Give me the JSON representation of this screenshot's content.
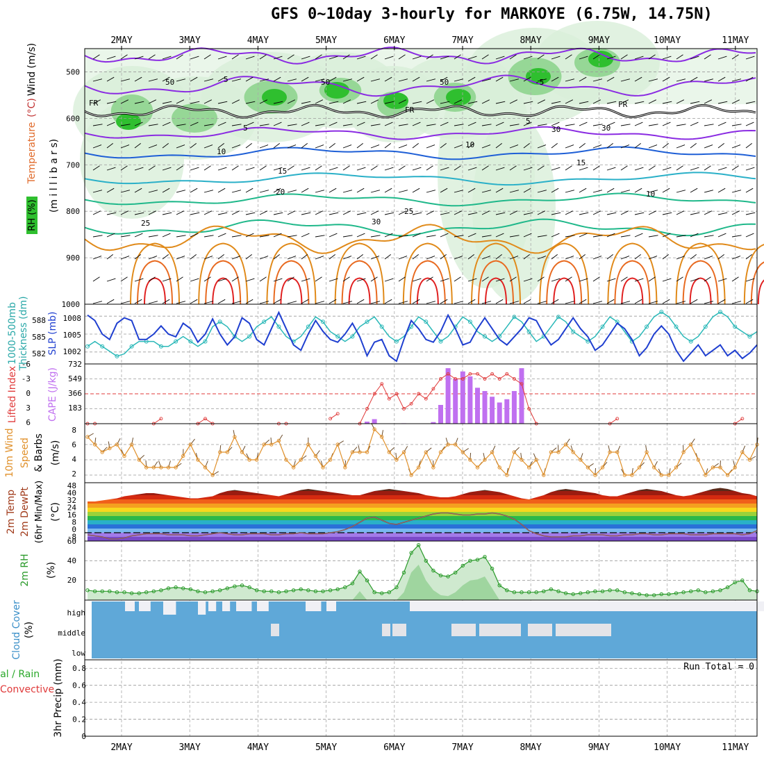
{
  "title": "GFS 0~10day 3-hourly for MARKOYE (6.75W, 14.75N)",
  "colors": {
    "rh_green": "#2fbf2f",
    "rh_light": "#d9efd9",
    "temp_purple": "#8a2be2",
    "temp_blue": "#1e5fd6",
    "temp_cyan": "#2ab0c8",
    "temp_teal": "#1fb88a",
    "temp_orange": "#e08a1a",
    "temp_red": "#e02020",
    "slp": "#1f3fd0",
    "thick": "#2ab8b8",
    "lifted": "#e03a3a",
    "cape": "#c070f0",
    "wind": "#e0902a",
    "rh2m": "#2a9a2a",
    "cloud": "#5fa8d8",
    "cloud_clear": "#f0f0f5"
  },
  "dates_top": [
    "2MAY",
    "3MAY",
    "4MAY",
    "5MAY",
    "6MAY",
    "7MAY",
    "8MAY",
    "9MAY",
    "10MAY",
    "11MAY"
  ],
  "dates_bottom": [
    "2MAY",
    "3MAY",
    "4MAY",
    "5MAY",
    "6MAY",
    "7MAY",
    "8MAY",
    "9MAY",
    "10MAY",
    "11MAY"
  ],
  "panel_labels": {
    "p1_rh": "RH (%)",
    "p1_temp": "Temperature",
    "p1_tempunit": "(°C)",
    "p1_wind": "Wind (m/s)",
    "p1_mb": "(m i l l i b a r s)",
    "p2_thick": "1000-500mb",
    "p2_thick2": "Thickness (dm)",
    "p2_slp": "SLP (mb)",
    "p3_li": "Lifted Index",
    "p3_cape": "CAPE (J/kg)",
    "p4_a": "10m Wind",
    "p4_b": "Speed",
    "p4_c": "& Barbs",
    "p4_unit": "(m/s)",
    "p5_a": "2m Temp",
    "p5_b": "2m DewPt",
    "p5_c": "(6hr Min/Max)",
    "p5_unit": "(°C)",
    "p6_a": "2m RH",
    "p6_unit": "(%)",
    "p7_a": "Cloud Cover",
    "p7_unit": "(%)",
    "p8_a": "Total / Rain",
    "p8_b": "Convective",
    "p8_c": "3hr Precip (mm)",
    "run_total": "Run Total = 0"
  },
  "pressure_ticks": [
    "500",
    "600",
    "700",
    "800",
    "900",
    "1000"
  ],
  "contour_labels": [
    "FR",
    "FR",
    "FR",
    "5",
    "5",
    "5",
    "-5",
    "10",
    "10",
    "15",
    "15",
    "20",
    "25",
    "25",
    "30",
    "50",
    "50",
    "50",
    "30",
    "30",
    "10"
  ],
  "slp_ticks": [
    "1008",
    "1005",
    "1002"
  ],
  "thick_ticks": [
    "588",
    "585",
    "582"
  ],
  "li_ticks": [
    "-6",
    "-3",
    "0",
    "3",
    "6"
  ],
  "cape_ticks": [
    "732",
    "549",
    "366",
    "183"
  ],
  "wind_ticks": [
    "8",
    "6",
    "4",
    "2"
  ],
  "temp_ticks": [
    "48",
    "40",
    "32",
    "24",
    "16",
    "8",
    "0",
    "-8"
  ],
  "rh_ticks": [
    "60",
    "40",
    "20"
  ],
  "cloud_ticks": [
    "high",
    "middle",
    "low"
  ],
  "precip_ticks": [
    "0.8",
    "0.6",
    "0.4",
    "0.2",
    "0"
  ],
  "chart_data": {
    "type": "meteogram",
    "title": "GFS 0~10day 3-hourly for MARKOYE (6.75W, 14.75N)",
    "x_unit": "3-hourly steps",
    "x_start_day": 1.6,
    "x_end_day": 11.3,
    "slp_mb": [
      1008.5,
      1007.5,
      1005,
      1004,
      1007,
      1008,
      1007.5,
      1004,
      1004,
      1005,
      1006.5,
      1005,
      1004.5,
      1007,
      1006,
      1003.5,
      1005,
      1007.8,
      1005,
      1003,
      1004.5,
      1008,
      1007,
      1004,
      1003,
      1006,
      1009,
      1006,
      1003,
      1002,
      1005,
      1007.5,
      1005.5,
      1004,
      1003.5,
      1005,
      1007,
      1004.5,
      1001,
      1003.5,
      1004,
      1001,
      1000,
      1004,
      1007.5,
      1006,
      1004,
      1003.5,
      1005.5,
      1008.5,
      1006,
      1003,
      1003.5,
      1006,
      1008,
      1006,
      1004,
      1003,
      1004.5,
      1006,
      1008,
      1007.5,
      1005,
      1003,
      1004,
      1006,
      1008,
      1006,
      1004.5,
      1002,
      1003,
      1005,
      1007,
      1006,
      1004,
      1001,
      1002.5,
      1005,
      1006.5,
      1005,
      1002,
      1000,
      1001.5,
      1003,
      1001,
      1002,
      1003,
      1001,
      1002,
      1000.5,
      1001.5,
      1003
    ],
    "thickness_dm": [
      582,
      583,
      582,
      581,
      580,
      580.5,
      582,
      583,
      583,
      583,
      582,
      582,
      583,
      584,
      583,
      582,
      583,
      586,
      587,
      586,
      584,
      583,
      584,
      586,
      587,
      588,
      586,
      584,
      583,
      584,
      586,
      588,
      587,
      585,
      584,
      583,
      584,
      586,
      587,
      588,
      586,
      584,
      583,
      584,
      586,
      588,
      587,
      585,
      583,
      584,
      586,
      588,
      587,
      585,
      584,
      583,
      584,
      586,
      588,
      587,
      585,
      583,
      584,
      586,
      588,
      587,
      585,
      584,
      583,
      584,
      586,
      588,
      587,
      585,
      583,
      584,
      586,
      588,
      589,
      588,
      586,
      584,
      583,
      584,
      586,
      588,
      589,
      588,
      586,
      585,
      584,
      585
    ],
    "lifted_index": [
      6,
      6,
      null,
      null,
      null,
      null,
      null,
      null,
      null,
      6,
      5,
      null,
      null,
      null,
      null,
      6,
      5,
      6,
      null,
      null,
      null,
      null,
      null,
      null,
      null,
      null,
      6,
      6,
      null,
      null,
      null,
      null,
      null,
      5,
      4,
      null,
      null,
      6,
      3,
      0,
      -2,
      1,
      0,
      3,
      2,
      0,
      1,
      -1,
      -3,
      -4,
      -3,
      -3,
      -4,
      -4,
      -3,
      -4,
      -3,
      -4,
      -3,
      -2,
      3,
      6,
      null,
      null,
      null,
      null,
      null,
      null,
      null,
      null,
      null,
      6,
      5,
      null,
      null,
      null,
      null,
      null,
      null,
      null,
      null,
      null,
      null,
      null,
      null,
      null,
      null,
      null,
      6,
      5,
      null,
      null
    ],
    "cape_jkg": [
      0,
      0,
      0,
      0,
      0,
      0,
      0,
      0,
      0,
      0,
      0,
      0,
      0,
      0,
      0,
      0,
      0,
      0,
      0,
      0,
      0,
      0,
      0,
      0,
      0,
      0,
      0,
      0,
      0,
      0,
      0,
      0,
      0,
      0,
      0,
      0,
      0,
      0,
      25,
      55,
      0,
      0,
      0,
      5,
      0,
      0,
      0,
      20,
      230,
      680,
      550,
      640,
      580,
      440,
      400,
      330,
      260,
      300,
      400,
      680,
      0,
      0,
      0,
      0,
      0,
      0,
      0,
      0,
      0,
      0,
      0,
      0,
      0,
      0,
      0,
      0,
      0,
      0,
      0,
      0,
      0,
      0,
      0,
      0,
      0,
      0,
      0,
      0,
      0,
      0,
      0,
      0
    ],
    "wind_speed_ms": [
      7,
      6,
      5,
      5.5,
      6,
      4.5,
      6,
      4,
      3,
      3,
      3,
      3,
      3,
      4.5,
      6,
      4,
      3,
      2,
      5,
      5,
      7,
      5,
      4,
      4,
      6,
      6,
      6.5,
      4,
      3,
      4,
      6,
      4.5,
      3,
      4,
      6,
      3,
      5,
      5,
      5,
      8,
      7,
      5,
      4,
      5,
      2,
      3,
      5,
      3,
      5,
      6,
      6,
      5,
      4,
      3,
      4,
      5,
      3,
      2,
      5,
      4,
      3,
      4,
      2,
      5,
      5,
      6,
      5,
      4,
      3,
      2,
      3,
      5,
      5,
      2,
      2,
      3,
      5,
      3,
      2,
      2,
      3,
      5,
      6,
      4,
      2,
      3,
      3,
      2,
      3,
      5,
      4,
      6
    ],
    "temp_2m_c": [
      30,
      30,
      31,
      32,
      33,
      35,
      36,
      37,
      38,
      38,
      37,
      36,
      35,
      34,
      33,
      33,
      34,
      35,
      38,
      40,
      41,
      40,
      39,
      38,
      37,
      36,
      35,
      37,
      39,
      41,
      42,
      41,
      40,
      39,
      38,
      37,
      36,
      36,
      38,
      40,
      41,
      42,
      41,
      40,
      39,
      38,
      36,
      35,
      34,
      34,
      35,
      37,
      39,
      40,
      41,
      40,
      39,
      37,
      35,
      33,
      32,
      34,
      36,
      39,
      41,
      42,
      41,
      40,
      39,
      38,
      36,
      35,
      35,
      37,
      39,
      41,
      42,
      41,
      40,
      38,
      36,
      35,
      36,
      38,
      40,
      42,
      43,
      42,
      40,
      38,
      37,
      35
    ],
    "dewpt_2m_c": [
      -2,
      -3,
      -4,
      -6,
      -6,
      -5,
      -3,
      -2,
      -1,
      -1,
      -1,
      -2,
      -2,
      -2,
      -3,
      -3,
      -2,
      -1,
      0,
      -1,
      -2,
      -2,
      -1,
      -1,
      -1,
      -2,
      -2,
      -1,
      -1,
      0,
      -1,
      -1,
      -1,
      0,
      1,
      3,
      6,
      10,
      14,
      15,
      12,
      9,
      8,
      10,
      12,
      14,
      16,
      18,
      19,
      19,
      18,
      17,
      17,
      18,
      18,
      19,
      18,
      16,
      13,
      8,
      2,
      -1,
      -3,
      -4,
      -4,
      -4,
      -3,
      -3,
      -2,
      -2,
      -2,
      -3,
      -3,
      -2,
      -2,
      -1,
      -1,
      -2,
      -2,
      -1,
      -1,
      -1,
      -2,
      -2,
      -2,
      -1,
      -1,
      -1,
      -1,
      -2,
      -1,
      2
    ],
    "rh_2m_pct": [
      10,
      9,
      9,
      9,
      8,
      8,
      7,
      7,
      8,
      9,
      10,
      12,
      13,
      12,
      11,
      9,
      8,
      9,
      10,
      12,
      14,
      15,
      13,
      10,
      9,
      9,
      8,
      9,
      10,
      11,
      10,
      9,
      9,
      10,
      11,
      13,
      17,
      29,
      20,
      8,
      7,
      8,
      13,
      28,
      48,
      56,
      40,
      30,
      25,
      24,
      28,
      35,
      40,
      41,
      44,
      32,
      15,
      10,
      8,
      8,
      8,
      8,
      9,
      11,
      9,
      7,
      6,
      7,
      8,
      9,
      9,
      10,
      10,
      8,
      7,
      6,
      5,
      5,
      6,
      6,
      7,
      8,
      9,
      10,
      8,
      9,
      10,
      13,
      18,
      20,
      10,
      9
    ],
    "precip_mm": [
      0,
      0,
      0,
      0,
      0,
      0,
      0,
      0,
      0,
      0,
      0,
      0,
      0,
      0,
      0,
      0,
      0,
      0,
      0,
      0,
      0,
      0,
      0,
      0,
      0,
      0,
      0,
      0,
      0,
      0,
      0,
      0,
      0,
      0,
      0,
      0,
      0,
      0,
      0,
      0,
      0,
      0,
      0,
      0,
      0,
      0,
      0,
      0,
      0,
      0,
      0,
      0,
      0,
      0,
      0,
      0,
      0,
      0,
      0,
      0,
      0,
      0,
      0,
      0,
      0,
      0,
      0,
      0,
      0,
      0,
      0,
      0,
      0,
      0,
      0,
      0,
      0,
      0,
      0,
      0,
      0,
      0,
      0,
      0,
      0,
      0,
      0,
      0,
      0,
      0,
      0,
      0
    ],
    "run_total_mm": 0,
    "pressure_range_mb": [
      450,
      1000
    ],
    "slp_range_mb": [
      1000,
      1010
    ],
    "thickness_range_dm": [
      579,
      590
    ],
    "li_range": [
      -6,
      6
    ],
    "cape_range": [
      0,
      732
    ],
    "wind_range_ms": [
      1,
      8
    ],
    "temp_range_c": [
      -8,
      48
    ],
    "rh_range_pct": [
      0,
      60
    ],
    "precip_range_mm": [
      0,
      0.9
    ]
  }
}
